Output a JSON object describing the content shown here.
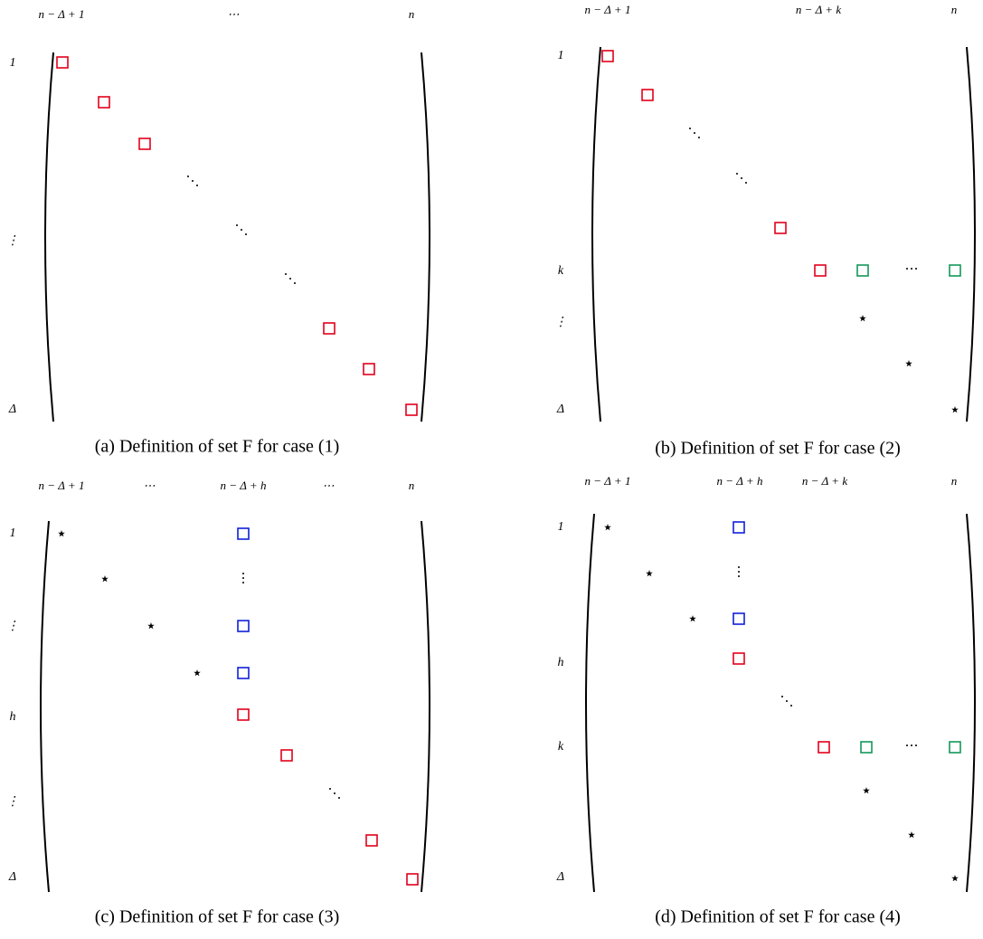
{
  "panels": [
    {
      "col_labels": [
        "n − Δ + 1",
        "⋯",
        "n"
      ],
      "row_labels": [
        "1",
        "⋮",
        "Δ"
      ],
      "dots": [
        "⋱",
        "⋱",
        "⋱"
      ],
      "caption": "(a) Definition of set F for case (1)"
    },
    {
      "col_labels": [
        "n − Δ + 1",
        "n − Δ + k",
        "n"
      ],
      "row_labels": [
        "1",
        "k",
        "⋮",
        "Δ"
      ],
      "dots": [
        "⋱",
        "⋱",
        "⋯"
      ],
      "caption": "(b) Definition of set F for case (2)"
    },
    {
      "col_labels": [
        "n − Δ + 1",
        "⋯",
        "n − Δ + h",
        "⋯",
        "n"
      ],
      "row_labels": [
        "1",
        "⋮",
        "h",
        "⋮",
        "Δ"
      ],
      "dots": [
        "⋮",
        "⋱"
      ],
      "caption": "(c) Definition of set F for case (3)"
    },
    {
      "col_labels": [
        "n − Δ + 1",
        "n − Δ + h",
        "n − Δ + k",
        "n"
      ],
      "row_labels": [
        "1",
        "h",
        "k",
        "Δ"
      ],
      "dots": [
        "⋮",
        "⋱",
        "⋯"
      ],
      "caption": "(d) Definition of set F for case (4)"
    }
  ]
}
